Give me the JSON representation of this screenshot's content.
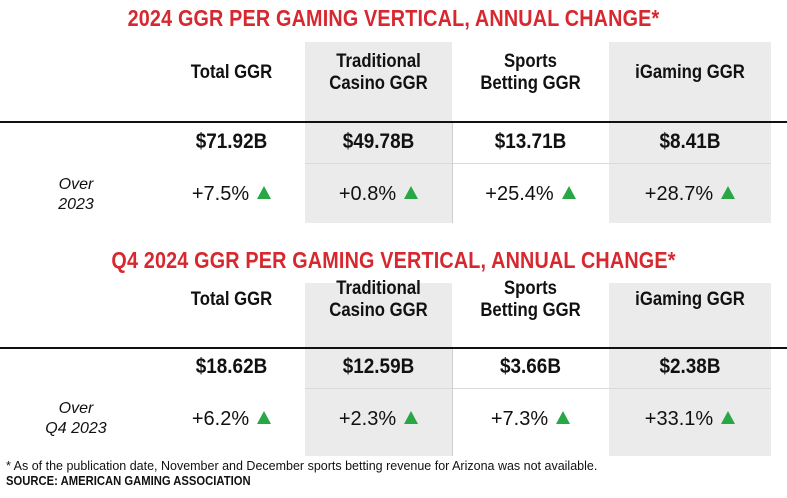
{
  "chart_data": [
    {
      "type": "table",
      "title": "2024 GGR PER GAMING VERTICAL, ANNUAL CHANGE*",
      "columns": [
        [
          "Total GGR"
        ],
        [
          "Traditional",
          "Casino GGR"
        ],
        [
          "Sports",
          "Betting GGR"
        ],
        [
          "iGaming GGR"
        ]
      ],
      "amounts": [
        "$71.92B",
        "$49.78B",
        "$13.71B",
        "$8.41B"
      ],
      "row_label": [
        "Over",
        "2023"
      ],
      "changes": [
        "+7.5%",
        "+0.8%",
        "+25.4%",
        "+28.7%"
      ],
      "values_billion": [
        71.92,
        49.78,
        13.71,
        8.41
      ],
      "change_percent": [
        7.5,
        0.8,
        25.4,
        28.7
      ]
    },
    {
      "type": "table",
      "title": "Q4 2024 GGR PER GAMING VERTICAL, ANNUAL CHANGE*",
      "columns": [
        [
          "Total GGR"
        ],
        [
          "Traditional",
          "Casino GGR"
        ],
        [
          "Sports",
          "Betting GGR"
        ],
        [
          "iGaming GGR"
        ]
      ],
      "amounts": [
        "$18.62B",
        "$12.59B",
        "$3.66B",
        "$2.38B"
      ],
      "row_label": [
        "Over",
        "Q4 2023"
      ],
      "changes": [
        "+6.2%",
        "+2.3%",
        "+7.3%",
        "+33.1%"
      ],
      "values_billion": [
        18.62,
        12.59,
        3.66,
        2.38
      ],
      "change_percent": [
        6.2,
        2.3,
        7.3,
        33.1
      ]
    }
  ],
  "footnote": "* As of the publication date, November and December sports betting revenue for Arizona was not available.",
  "source": "SOURCE: AMERICAN GAMING ASSOCIATION",
  "colors": {
    "title": "#d7282f",
    "up_arrow": "#27a844",
    "shade": "#ebebeb"
  },
  "icons": {
    "change_indicator": "up-triangle-icon"
  }
}
